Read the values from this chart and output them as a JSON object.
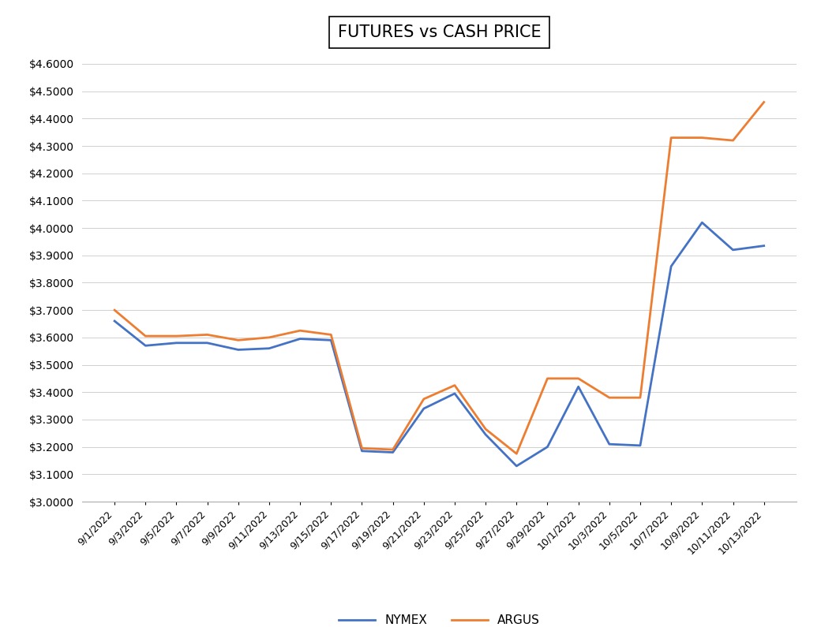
{
  "title": "FUTURES vs CASH PRICE",
  "title_fontsize": 15,
  "legend_labels": [
    "NYMEX",
    "ARGUS"
  ],
  "nymex_color": "#4472C4",
  "argus_color": "#ED7D31",
  "line_width": 2.0,
  "ylim": [
    3.0,
    4.65
  ],
  "ytick_step": 0.1,
  "background_color": "#ffffff",
  "dates": [
    "9/1/2022",
    "9/3/2022",
    "9/5/2022",
    "9/7/2022",
    "9/9/2022",
    "9/11/2022",
    "9/13/2022",
    "9/15/2022",
    "9/17/2022",
    "9/19/2022",
    "9/21/2022",
    "9/23/2022",
    "9/25/2022",
    "9/27/2022",
    "9/29/2022",
    "10/1/2022",
    "10/3/2022",
    "10/5/2022",
    "10/7/2022",
    "10/9/2022",
    "10/11/2022",
    "10/13/2022"
  ],
  "nymex": [
    3.66,
    3.57,
    3.58,
    3.58,
    3.555,
    3.56,
    3.595,
    3.59,
    3.185,
    3.18,
    3.34,
    3.395,
    3.245,
    3.13,
    3.2,
    3.42,
    3.21,
    3.205,
    3.86,
    4.02,
    3.92,
    3.935
  ],
  "argus": [
    3.7,
    3.605,
    3.605,
    3.61,
    3.59,
    3.6,
    3.625,
    3.61,
    3.195,
    3.19,
    3.375,
    3.425,
    3.265,
    3.175,
    3.45,
    3.45,
    3.38,
    3.38,
    4.33,
    4.33,
    4.32,
    4.46
  ]
}
